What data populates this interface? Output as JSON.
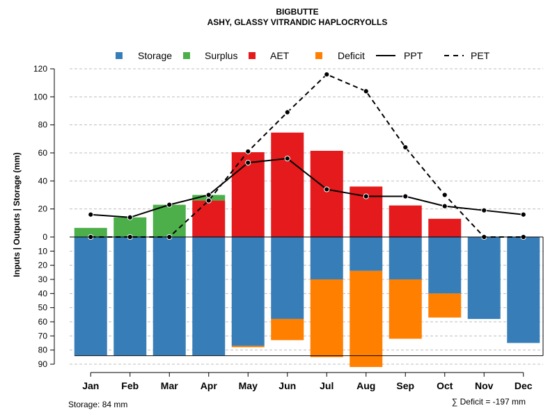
{
  "chart_data": {
    "type": "bar",
    "title": "BIGBUTTE",
    "subtitle": "ASHY, GLASSY VITRANDIC HAPLOCRYOLLS",
    "ylabel": "Inputs | Outputs | Storage    (mm)",
    "categories": [
      "Jan",
      "Feb",
      "Mar",
      "Apr",
      "May",
      "Jun",
      "Jul",
      "Aug",
      "Sep",
      "Oct",
      "Nov",
      "Dec"
    ],
    "ylim_top": [
      0,
      120
    ],
    "ylim_bottom": [
      0,
      90
    ],
    "top_ticks": [
      "0",
      "20",
      "40",
      "60",
      "80",
      "100",
      "120"
    ],
    "bottom_ticks": [
      "10",
      "20",
      "30",
      "40",
      "50",
      "60",
      "70",
      "80",
      "90"
    ],
    "capacity": 84,
    "series": [
      {
        "name": "Storage",
        "color": "#377EB8",
        "values": [
          84,
          84,
          84,
          84,
          77,
          58,
          30,
          24,
          30,
          40,
          58,
          75
        ]
      },
      {
        "name": "Surplus",
        "color": "#4DAF4A",
        "values": [
          6.5,
          14,
          23,
          30,
          0,
          0,
          0,
          0,
          0,
          0,
          0,
          0
        ]
      },
      {
        "name": "AET",
        "color": "#E41A1C",
        "values": [
          0,
          0,
          0,
          26,
          60.5,
          74.5,
          61.5,
          36,
          22.5,
          13,
          0,
          0
        ]
      },
      {
        "name": "Deficit",
        "color": "#FF7F00",
        "values": [
          0,
          0,
          0,
          0,
          1,
          15,
          55,
          68,
          42,
          17,
          0,
          0
        ]
      },
      {
        "name": "PPT",
        "color": "#000000",
        "style": "solid",
        "values": [
          16,
          14,
          23,
          30,
          53,
          56,
          34,
          29,
          29,
          22,
          19,
          16
        ]
      },
      {
        "name": "PET",
        "color": "#000000",
        "style": "dashed",
        "values": [
          0,
          0,
          0,
          26,
          61,
          89,
          116,
          104,
          64,
          30,
          0,
          0
        ]
      }
    ],
    "legend": [
      "Storage",
      "Surplus",
      "AET",
      "Deficit",
      "PPT",
      "PET"
    ],
    "legend_position": "top",
    "grid": true,
    "storage_note": "Storage: 84 mm",
    "deficit_note": "∑ Deficit = -197 mm"
  }
}
